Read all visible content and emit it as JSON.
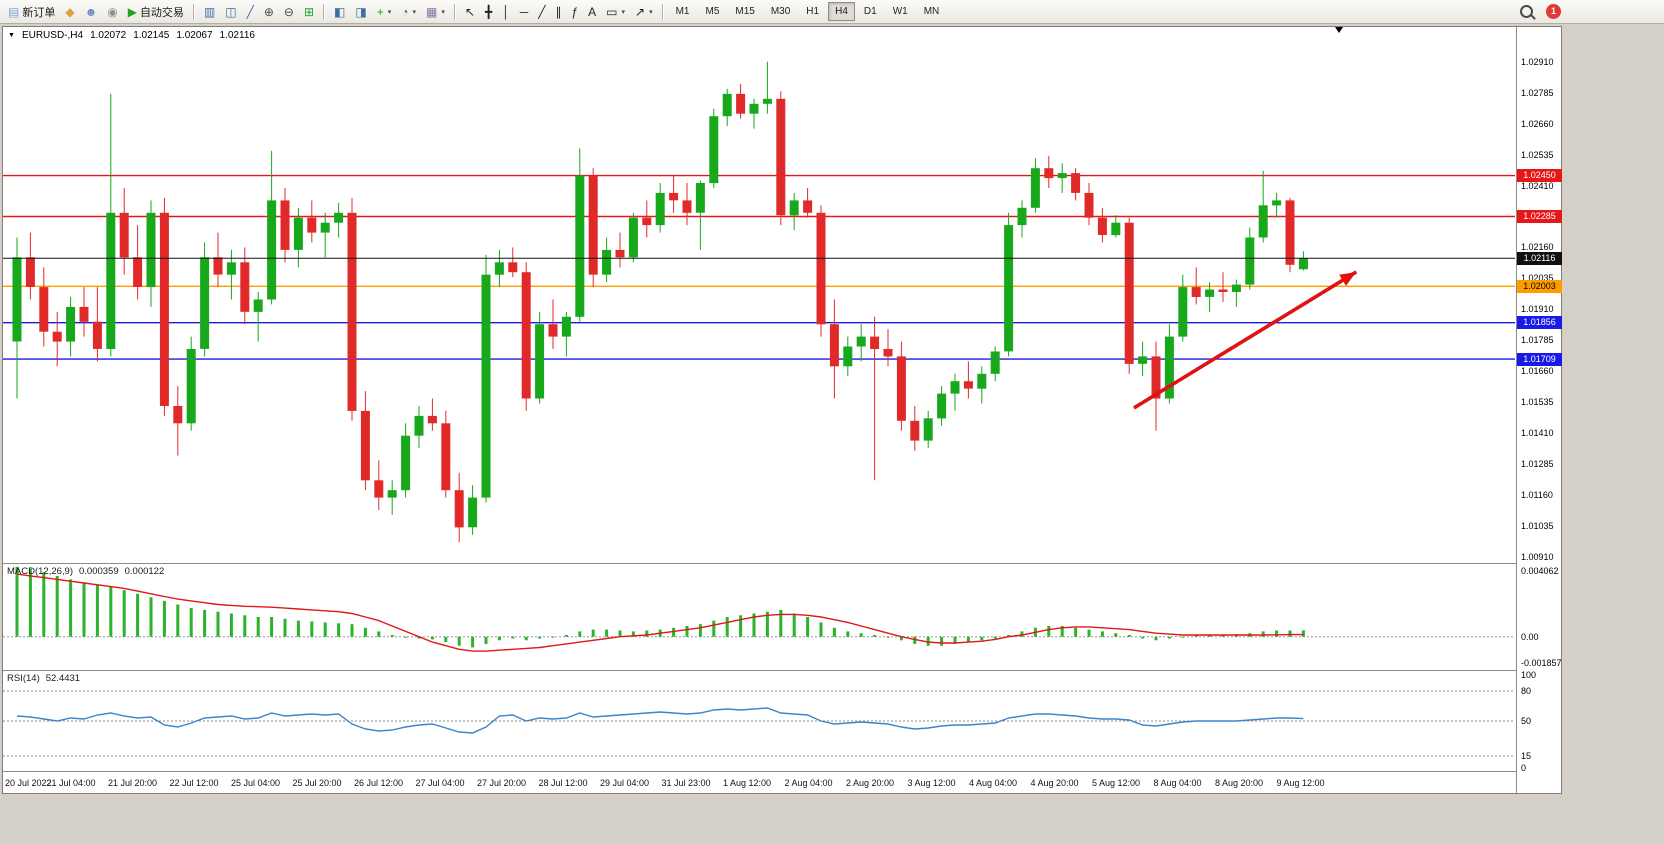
{
  "toolbar": {
    "buttons": [
      {
        "name": "new-order-button",
        "glyph": "▤",
        "glyph_color": "#7ba7d7",
        "label": "新订单"
      },
      {
        "name": "charts-icon-button",
        "glyph": "◆",
        "glyph_color": "#dda23a"
      },
      {
        "name": "accounts-icon-button",
        "glyph": "☻",
        "glyph_color": "#6b8fc9"
      },
      {
        "name": "community-icon-button",
        "glyph": "◉",
        "glyph_color": "#919191"
      },
      {
        "name": "autotrading-button",
        "glyph": "▶",
        "glyph_color": "#23a323",
        "label": "自动交易"
      },
      {
        "type": "sep"
      },
      {
        "name": "bar-chart-button",
        "glyph": "▥",
        "glyph_color": "#3a6ea5"
      },
      {
        "name": "candlestick-chart-button",
        "glyph": "◫",
        "glyph_color": "#3a6ea5"
      },
      {
        "name": "line-chart-button",
        "glyph": "╱",
        "glyph_color": "#3a6ea5"
      },
      {
        "name": "zoom-in-button",
        "glyph": "⊕",
        "glyph_color": "#4a4a4a"
      },
      {
        "name": "zoom-out-button",
        "glyph": "⊖",
        "glyph_color": "#4a4a4a"
      },
      {
        "name": "tile-windows-button",
        "glyph": "⊞",
        "glyph_color": "#23a323"
      },
      {
        "type": "sep"
      },
      {
        "name": "indicators-window-button",
        "glyph": "◧",
        "glyph_color": "#3a6ea5"
      },
      {
        "name": "chart-window-button",
        "glyph": "◨",
        "glyph_color": "#3a6ea5"
      },
      {
        "name": "add-indicator-button",
        "glyph": "+",
        "glyph_color": "#23a323",
        "caret": true
      },
      {
        "name": "periods-button",
        "glyph": "◔",
        "glyph_color": "#3a6ea5",
        "caret": true
      },
      {
        "name": "templates-button",
        "glyph": "▦",
        "glyph_color": "#8a6ea5",
        "caret": true
      },
      {
        "type": "sep"
      },
      {
        "name": "cursor-tool-button",
        "glyph": "↖",
        "glyph_color": "#222"
      },
      {
        "name": "crosshair-tool-button",
        "glyph": "╋",
        "glyph_color": "#222"
      },
      {
        "name": "vertical-line-tool-button",
        "glyph": "│",
        "glyph_color": "#222"
      },
      {
        "name": "horizontal-line-tool-button",
        "glyph": "─",
        "glyph_color": "#222"
      },
      {
        "name": "trendline-tool-button",
        "glyph": "╱",
        "glyph_color": "#222"
      },
      {
        "name": "equidistant-channel-tool-button",
        "glyph": "∥",
        "glyph_color": "#222"
      },
      {
        "name": "fibonacci-tool-button",
        "glyph": "ƒ",
        "glyph_color": "#222"
      },
      {
        "name": "text-tool-button",
        "glyph": "A",
        "glyph_color": "#222"
      },
      {
        "name": "shapes-tool-button",
        "glyph": "▭",
        "glyph_color": "#222",
        "caret": true
      },
      {
        "name": "arrows-tool-button",
        "glyph": "↗",
        "glyph_color": "#222",
        "caret": true
      },
      {
        "type": "sep"
      }
    ],
    "timeframes": [
      "M1",
      "M5",
      "M15",
      "M30",
      "H1",
      "H4",
      "D1",
      "W1",
      "MN"
    ],
    "active_timeframe": "H4",
    "badge_count": "1"
  },
  "chart": {
    "symbol_label": "EURUSD-,H4",
    "open": "1.02072",
    "high": "1.02145",
    "low": "1.02067",
    "close": "1.02116"
  },
  "chart_data": {
    "type": "candlestick",
    "symbol": "EURUSD-",
    "timeframe": "H4",
    "colors": {
      "up": "#17a81c",
      "down": "#e02a2a",
      "macd_hist": "#2bb32b",
      "macd_signal": "#e01717",
      "rsi_line": "#3e84c8",
      "arrow": "#e01212"
    },
    "price_axis": {
      "min": 1.0089,
      "max": 1.0305,
      "ticks": [
        "1.02910",
        "1.02785",
        "1.02660",
        "1.02535",
        "1.02410",
        "1.02285",
        "1.02160",
        "1.02035",
        "1.01910",
        "1.01785",
        "1.01660",
        "1.01535",
        "1.01410",
        "1.01285",
        "1.01160",
        "1.01035",
        "1.00910"
      ]
    },
    "hlines": [
      {
        "price": 1.0245,
        "label": "1.02450",
        "color": "#e81717",
        "text_color": "#ffffff"
      },
      {
        "price": 1.02285,
        "label": "1.02285",
        "color": "#e81717",
        "text_color": "#ffffff"
      },
      {
        "price": 1.02003,
        "label": "1.02003",
        "color": "#ff9c00",
        "text_color": "#000000"
      },
      {
        "price": 1.01856,
        "label": "1.01856",
        "color": "#1a1ae8",
        "text_color": "#ffffff"
      },
      {
        "price": 1.01709,
        "label": "1.01709",
        "color": "#1a1ae8",
        "text_color": "#ffffff"
      }
    ],
    "current_price_line": {
      "price": 1.02116,
      "label": "1.02116",
      "color": "#111111",
      "text_color": "#ffffff"
    },
    "trend_arrow": {
      "x1_frac": 0.748,
      "price1": 1.01512,
      "x2_frac": 0.895,
      "price2": 1.02061
    },
    "candles": [
      [
        1.0178,
        1.022,
        1.0155,
        1.0212
      ],
      [
        1.0212,
        1.0222,
        1.0195,
        1.02
      ],
      [
        1.02,
        1.0208,
        1.0176,
        1.0182
      ],
      [
        1.0182,
        1.019,
        1.0168,
        1.0178
      ],
      [
        1.0178,
        1.0196,
        1.0172,
        1.0192
      ],
      [
        1.0192,
        1.02,
        1.018,
        1.0186
      ],
      [
        1.0186,
        1.02,
        1.017,
        1.0175
      ],
      [
        1.0175,
        1.0278,
        1.0172,
        1.023
      ],
      [
        1.023,
        1.024,
        1.0205,
        1.0212
      ],
      [
        1.0212,
        1.0225,
        1.0195,
        1.02
      ],
      [
        1.02,
        1.0235,
        1.0192,
        1.023
      ],
      [
        1.023,
        1.0236,
        1.0148,
        1.0152
      ],
      [
        1.0152,
        1.016,
        1.0132,
        1.0145
      ],
      [
        1.0145,
        1.018,
        1.0142,
        1.0175
      ],
      [
        1.0175,
        1.0218,
        1.0172,
        1.0212
      ],
      [
        1.0212,
        1.0222,
        1.02,
        1.0205
      ],
      [
        1.0205,
        1.0215,
        1.0195,
        1.021
      ],
      [
        1.021,
        1.0216,
        1.0185,
        1.019
      ],
      [
        1.019,
        1.0198,
        1.0178,
        1.0195
      ],
      [
        1.0195,
        1.0255,
        1.0193,
        1.0235
      ],
      [
        1.0235,
        1.024,
        1.021,
        1.0215
      ],
      [
        1.0215,
        1.0232,
        1.0208,
        1.0228
      ],
      [
        1.0228,
        1.0235,
        1.0218,
        1.0222
      ],
      [
        1.0222,
        1.023,
        1.0212,
        1.0226
      ],
      [
        1.0226,
        1.0234,
        1.022,
        1.023
      ],
      [
        1.023,
        1.0236,
        1.0146,
        1.015
      ],
      [
        1.015,
        1.0158,
        1.0118,
        1.0122
      ],
      [
        1.0122,
        1.013,
        1.011,
        1.0115
      ],
      [
        1.0115,
        1.0122,
        1.0108,
        1.0118
      ],
      [
        1.0118,
        1.0145,
        1.0115,
        1.014
      ],
      [
        1.014,
        1.0152,
        1.0135,
        1.0148
      ],
      [
        1.0148,
        1.0155,
        1.0142,
        1.0145
      ],
      [
        1.0145,
        1.015,
        1.0115,
        1.0118
      ],
      [
        1.0118,
        1.0125,
        1.0097,
        1.0103
      ],
      [
        1.0103,
        1.012,
        1.01,
        1.0115
      ],
      [
        1.0115,
        1.0213,
        1.0113,
        1.0205
      ],
      [
        1.0205,
        1.0215,
        1.02,
        1.021
      ],
      [
        1.021,
        1.0216,
        1.0204,
        1.0206
      ],
      [
        1.0206,
        1.021,
        1.015,
        1.0155
      ],
      [
        1.0155,
        1.019,
        1.0153,
        1.0185
      ],
      [
        1.0185,
        1.0195,
        1.0175,
        1.018
      ],
      [
        1.018,
        1.019,
        1.0172,
        1.0188
      ],
      [
        1.0188,
        1.0256,
        1.0186,
        1.0245
      ],
      [
        1.0245,
        1.0248,
        1.02,
        1.0205
      ],
      [
        1.0205,
        1.022,
        1.0202,
        1.0215
      ],
      [
        1.0215,
        1.0222,
        1.0208,
        1.0212
      ],
      [
        1.0212,
        1.023,
        1.021,
        1.0228
      ],
      [
        1.0228,
        1.0235,
        1.022,
        1.0225
      ],
      [
        1.0225,
        1.0242,
        1.0222,
        1.0238
      ],
      [
        1.0238,
        1.0245,
        1.023,
        1.0235
      ],
      [
        1.0235,
        1.0242,
        1.0225,
        1.023
      ],
      [
        1.023,
        1.0243,
        1.0215,
        1.0242
      ],
      [
        1.0242,
        1.0272,
        1.024,
        1.0269
      ],
      [
        1.0269,
        1.028,
        1.0265,
        1.0278
      ],
      [
        1.0278,
        1.0282,
        1.0268,
        1.027
      ],
      [
        1.027,
        1.0276,
        1.0264,
        1.0274
      ],
      [
        1.0274,
        1.0291,
        1.027,
        1.0276
      ],
      [
        1.0276,
        1.0279,
        1.0225,
        1.0229
      ],
      [
        1.0229,
        1.0238,
        1.0223,
        1.0235
      ],
      [
        1.0235,
        1.024,
        1.0228,
        1.023
      ],
      [
        1.023,
        1.0233,
        1.018,
        1.0185
      ],
      [
        1.0185,
        1.0195,
        1.0155,
        1.0168
      ],
      [
        1.0168,
        1.018,
        1.0164,
        1.0176
      ],
      [
        1.0176,
        1.0185,
        1.017,
        1.018
      ],
      [
        1.018,
        1.0188,
        1.0122,
        1.0175
      ],
      [
        1.0175,
        1.0183,
        1.0168,
        1.0172
      ],
      [
        1.0172,
        1.0178,
        1.0142,
        1.0146
      ],
      [
        1.0146,
        1.0152,
        1.0134,
        1.0138
      ],
      [
        1.0138,
        1.015,
        1.0135,
        1.0147
      ],
      [
        1.0147,
        1.016,
        1.0144,
        1.0157
      ],
      [
        1.0157,
        1.0165,
        1.015,
        1.0162
      ],
      [
        1.0162,
        1.017,
        1.0155,
        1.0159
      ],
      [
        1.0159,
        1.0168,
        1.0153,
        1.0165
      ],
      [
        1.0165,
        1.0176,
        1.0162,
        1.0174
      ],
      [
        1.0174,
        1.023,
        1.0172,
        1.0225
      ],
      [
        1.0225,
        1.0235,
        1.022,
        1.0232
      ],
      [
        1.0232,
        1.0252,
        1.023,
        1.0248
      ],
      [
        1.0248,
        1.0253,
        1.024,
        1.0244
      ],
      [
        1.0244,
        1.025,
        1.0238,
        1.0246
      ],
      [
        1.0246,
        1.0248,
        1.0235,
        1.0238
      ],
      [
        1.0238,
        1.0242,
        1.0225,
        1.0228
      ],
      [
        1.0228,
        1.0232,
        1.0218,
        1.0221
      ],
      [
        1.0221,
        1.0229,
        1.022,
        1.0226
      ],
      [
        1.0226,
        1.0228,
        1.0165,
        1.0169
      ],
      [
        1.0169,
        1.0178,
        1.0164,
        1.0172
      ],
      [
        1.0172,
        1.0178,
        1.0142,
        1.0155
      ],
      [
        1.0155,
        1.0185,
        1.0153,
        1.018
      ],
      [
        1.018,
        1.0205,
        1.0178,
        1.02
      ],
      [
        1.02,
        1.0208,
        1.0193,
        1.0196
      ],
      [
        1.0196,
        1.0202,
        1.019,
        1.0199
      ],
      [
        1.0199,
        1.0206,
        1.0194,
        1.0198
      ],
      [
        1.0198,
        1.0203,
        1.0192,
        1.0201
      ],
      [
        1.0201,
        1.0224,
        1.0199,
        1.022
      ],
      [
        1.022,
        1.0247,
        1.0218,
        1.0233
      ],
      [
        1.0233,
        1.0238,
        1.0228,
        1.0235
      ],
      [
        1.0235,
        1.0236,
        1.0206,
        1.0209
      ],
      [
        1.02072,
        1.02145,
        1.02067,
        1.02116
      ]
    ],
    "time_labels": [
      "20 Jul 2022",
      "21 Jul 04:00",
      "21 Jul 20:00",
      "22 Jul 12:00",
      "25 Jul 04:00",
      "25 Jul 20:00",
      "26 Jul 12:00",
      "27 Jul 04:00",
      "27 Jul 20:00",
      "28 Jul 12:00",
      "29 Jul 04:00",
      "31 Jul 23:00",
      "1 Aug 12:00",
      "2 Aug 04:00",
      "2 Aug 20:00",
      "3 Aug 12:00",
      "4 Aug 04:00",
      "4 Aug 20:00",
      "5 Aug 12:00",
      "8 Aug 04:00",
      "8 Aug 20:00",
      "9 Aug 12:00"
    ],
    "macd": {
      "label": "MACD(12,26,9)",
      "main_value": "0.000359",
      "signal_value": "0.000122",
      "scale_max": 0.004062,
      "scale_min": -0.001857,
      "axis_labels": [
        "0.004062",
        "0.00",
        "-0.001857"
      ],
      "histogram": [
        0.0039,
        0.0038,
        0.0036,
        0.0034,
        0.0032,
        0.003,
        0.0029,
        0.0028,
        0.0026,
        0.0024,
        0.0022,
        0.002,
        0.0018,
        0.0016,
        0.0015,
        0.0014,
        0.0013,
        0.0012,
        0.0011,
        0.0011,
        0.001,
        0.0009,
        0.00085,
        0.0008,
        0.00075,
        0.0007,
        0.0005,
        0.0003,
        0.0001,
        0.0,
        -0.0001,
        -0.00015,
        -0.0003,
        -0.0005,
        -0.0006,
        -0.0004,
        -0.0002,
        -0.0001,
        -0.0002,
        -0.0001,
        0.0,
        0.0001,
        0.0003,
        0.0004,
        0.0004,
        0.00035,
        0.0003,
        0.00035,
        0.0004,
        0.0005,
        0.0006,
        0.0007,
        0.0009,
        0.0011,
        0.0012,
        0.0013,
        0.0014,
        0.0015,
        0.0013,
        0.0011,
        0.0008,
        0.0005,
        0.0003,
        0.0002,
        0.0001,
        0.0,
        -0.0002,
        -0.0004,
        -0.0005,
        -0.0005,
        -0.0004,
        -0.0003,
        -0.0002,
        -0.0001,
        0.0001,
        0.0003,
        0.0005,
        0.0006,
        0.0006,
        0.0005,
        0.0004,
        0.0003,
        0.0002,
        0.0001,
        -0.0001,
        -0.0002,
        -0.0001,
        0.0,
        0.0001,
        0.0001,
        0.0001,
        0.00015,
        0.0002,
        0.0003,
        0.00035,
        0.00035,
        0.000359
      ],
      "signal": [
        0.0035,
        0.0034,
        0.0033,
        0.0032,
        0.0031,
        0.003,
        0.0029,
        0.0028,
        0.0027,
        0.00255,
        0.0024,
        0.00225,
        0.0021,
        0.002,
        0.0019,
        0.0018,
        0.00175,
        0.0017,
        0.00168,
        0.00165,
        0.0016,
        0.00155,
        0.0015,
        0.00145,
        0.0014,
        0.0013,
        0.0011,
        0.0009,
        0.0006,
        0.0003,
        0.0,
        -0.0003,
        -0.0005,
        -0.0007,
        -0.0008,
        -0.0008,
        -0.00075,
        -0.0007,
        -0.00065,
        -0.0006,
        -0.0005,
        -0.0004,
        -0.0003,
        -0.0002,
        -0.0001,
        0.0,
        5e-05,
        0.0001,
        0.0002,
        0.0003,
        0.0004,
        0.0005,
        0.00065,
        0.0008,
        0.00095,
        0.0011,
        0.0012,
        0.00125,
        0.00125,
        0.0012,
        0.0011,
        0.00095,
        0.0008,
        0.0006,
        0.0004,
        0.0002,
        0.0,
        -0.00015,
        -0.0003,
        -0.00035,
        -0.00035,
        -0.0003,
        -0.00025,
        -0.00015,
        0.0,
        0.0001,
        0.00025,
        0.0004,
        0.0005,
        0.00055,
        0.00055,
        0.0005,
        0.00045,
        0.0004,
        0.0003,
        0.0002,
        0.00015,
        0.0001,
        0.0001,
        0.0001,
        0.0001,
        0.0001,
        0.0001,
        0.0001,
        0.00011,
        0.00012,
        0.000122
      ]
    },
    "rsi": {
      "label": "RSI(14)",
      "value": "52.4431",
      "levels": [
        80,
        50,
        15
      ],
      "axis_labels": [
        "100",
        "80",
        "50",
        "15",
        "0"
      ],
      "values": [
        55,
        54,
        52,
        50,
        53,
        52,
        56,
        58,
        55,
        53,
        54,
        46,
        44,
        48,
        53,
        54,
        55,
        52,
        53,
        58,
        55,
        56,
        57,
        56,
        57,
        47,
        42,
        40,
        41,
        44,
        46,
        47,
        43,
        39,
        38,
        44,
        55,
        56,
        50,
        53,
        52,
        53,
        58,
        54,
        55,
        56,
        57,
        58,
        59,
        58,
        57,
        58,
        61,
        62,
        61,
        62,
        63,
        58,
        57,
        56,
        50,
        47,
        48,
        49,
        48,
        47,
        44,
        42,
        43,
        45,
        46,
        46,
        47,
        48,
        53,
        55,
        57,
        57,
        56,
        55,
        53,
        52,
        52,
        51,
        46,
        45,
        47,
        49,
        50,
        50,
        50,
        50,
        51,
        52,
        53,
        53,
        52.4431
      ]
    }
  }
}
